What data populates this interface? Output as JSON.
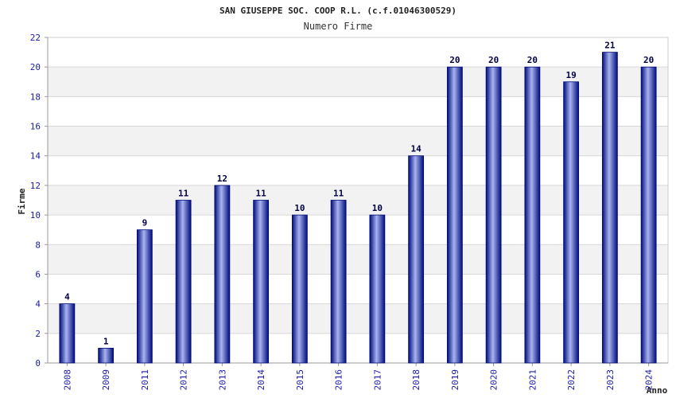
{
  "chart_data": {
    "type": "bar",
    "title": "SAN GIUSEPPE SOC. COOP R.L. (c.f.01046300529)",
    "subtitle": "Numero Firme",
    "xlabel": "Anno",
    "ylabel": "Firme",
    "categories": [
      "2008",
      "2009",
      "2011",
      "2012",
      "2013",
      "2014",
      "2015",
      "2016",
      "2017",
      "2018",
      "2019",
      "2020",
      "2021",
      "2022",
      "2023",
      "2024"
    ],
    "values": [
      4,
      1,
      9,
      11,
      12,
      11,
      10,
      11,
      10,
      14,
      20,
      20,
      20,
      19,
      21,
      20
    ],
    "ylim": [
      0,
      22
    ],
    "yticks": [
      "0",
      "2",
      "4",
      "6",
      "8",
      "10",
      "12",
      "14",
      "16",
      "18",
      "20",
      "22"
    ],
    "grid": true,
    "legend": "none",
    "colors": {
      "bar_dark": "#000c7a",
      "bar_light": "#a8b4f0",
      "band": "#f2f2f2",
      "grid": "#d8d8d8",
      "tick_text": "#1a1aaa"
    }
  }
}
